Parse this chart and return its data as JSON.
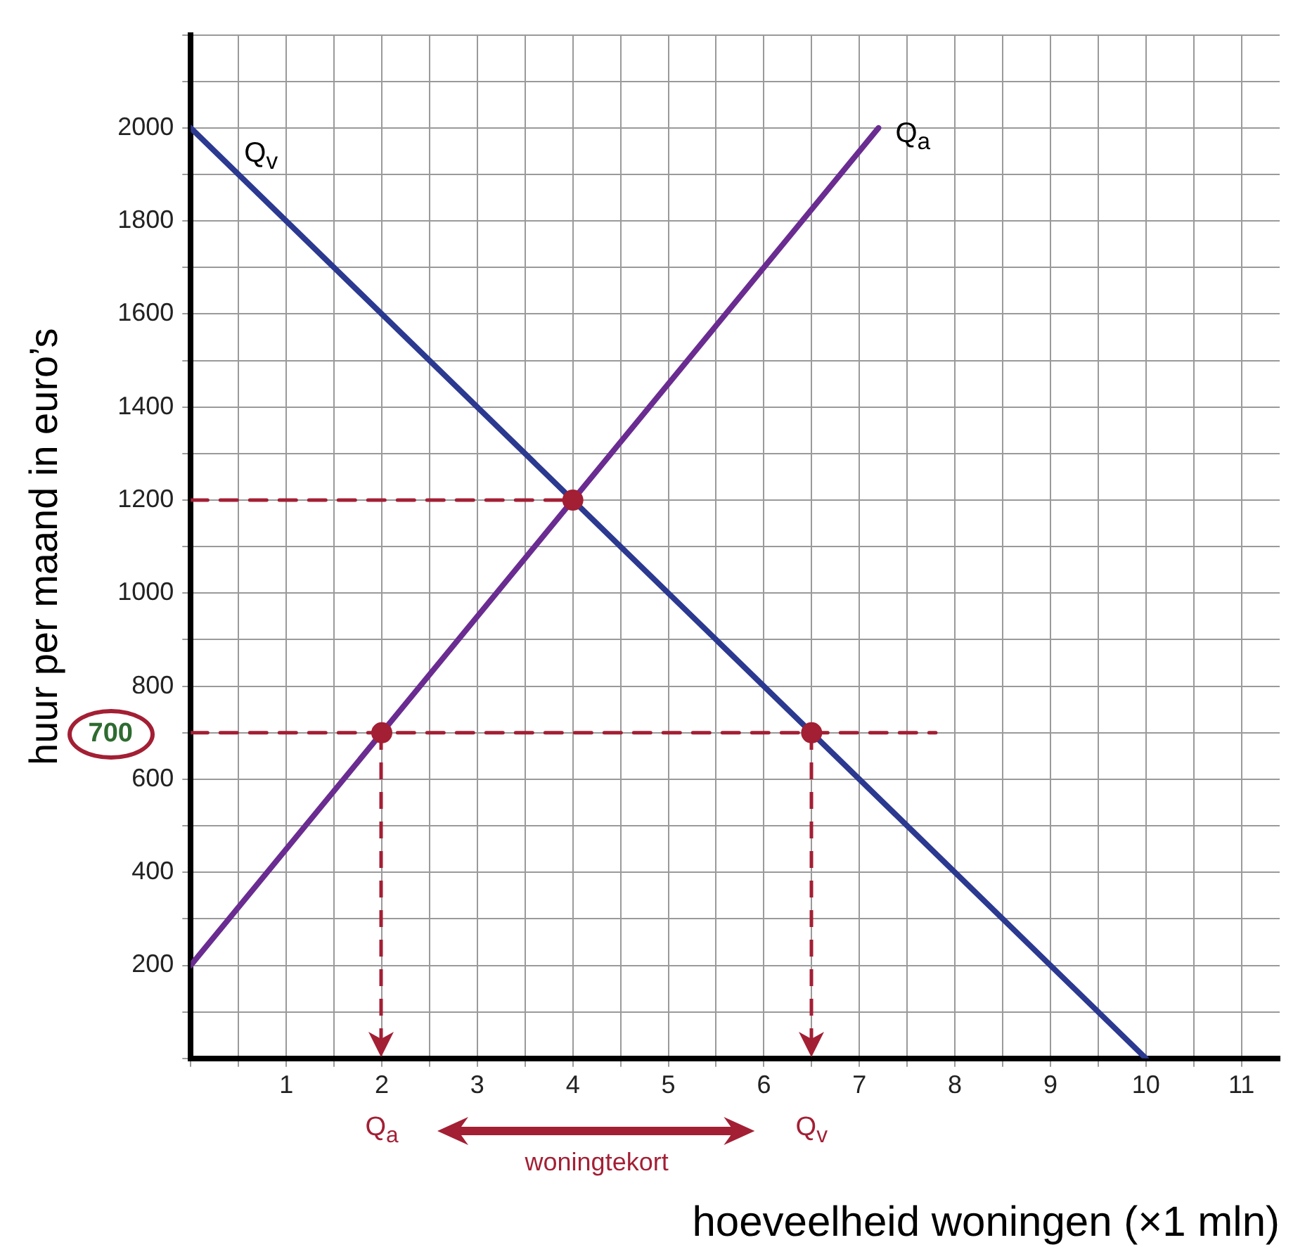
{
  "chart_data": {
    "type": "line",
    "xlabel": "hoeveelheid woningen (×1 mln)",
    "ylabel": "huur per maand in euro’s",
    "xlim": [
      0,
      11.4
    ],
    "ylim": [
      0,
      2200
    ],
    "xticks": [
      {
        "value": 0,
        "label": null
      },
      {
        "value": 0.5,
        "label": null
      },
      1,
      {
        "value": 1.5,
        "label": null
      },
      2,
      {
        "value": 2.5,
        "label": null
      },
      3,
      {
        "value": 3.5,
        "label": null
      },
      4,
      {
        "value": 4.5,
        "label": null
      },
      5,
      {
        "value": 5.5,
        "label": null
      },
      6,
      {
        "value": 6.5,
        "label": null
      },
      7,
      {
        "value": 7.5,
        "label": null
      },
      8,
      {
        "value": 8.5,
        "label": null
      },
      9,
      {
        "value": 9.5,
        "label": null
      },
      10,
      {
        "value": 10.5,
        "label": null
      },
      11
    ],
    "yticks": [
      {
        "value": 0,
        "label": null
      },
      {
        "value": 100,
        "label": null
      },
      200,
      {
        "value": 300,
        "label": null
      },
      400,
      {
        "value": 500,
        "label": null
      },
      600,
      {
        "value": 700,
        "label": null
      },
      800,
      {
        "value": 900,
        "label": null
      },
      1000,
      {
        "value": 1100,
        "label": null
      },
      1200,
      {
        "value": 1300,
        "label": null
      },
      1400,
      {
        "value": 1500,
        "label": null
      },
      1600,
      {
        "value": 1700,
        "label": null
      },
      1800,
      {
        "value": 1900,
        "label": null
      },
      2000,
      {
        "value": 2100,
        "label": null
      },
      {
        "value": 2200,
        "label": null
      }
    ],
    "grid": true,
    "series": [
      {
        "name": "Q$_{v}$",
        "color": "#2b3990",
        "x": [
          0,
          10
        ],
        "values": [
          2000,
          0
        ],
        "marker": "none",
        "line_style": "solid"
      },
      {
        "name": "Q$_{a}$",
        "color": "#6a2c91",
        "x": [
          0,
          7.2
        ],
        "values": [
          200,
          2000
        ],
        "marker": "none",
        "line_style": "solid"
      },
      {
        "color": "#a31f34",
        "x": [
          0,
          4
        ],
        "values": [
          1200,
          1200
        ],
        "marker": "none",
        "line_style": "dashed"
      },
      {
        "color": "#a31f34",
        "x": [
          0,
          7.8
        ],
        "values": [
          700,
          700
        ],
        "marker": "none",
        "line_style": "dashed"
      },
      {
        "type": "scatter",
        "color": "#a31f34",
        "x": [
          2,
          4,
          6.5
        ],
        "values": [
          700,
          1200,
          700
        ],
        "marker": "circle"
      }
    ],
    "annotations": [
      {
        "text": "700",
        "x": 0,
        "y": 700
      },
      "Q$_{a}$",
      "Q$_{v}$",
      "woningtekort"
    ]
  }
}
